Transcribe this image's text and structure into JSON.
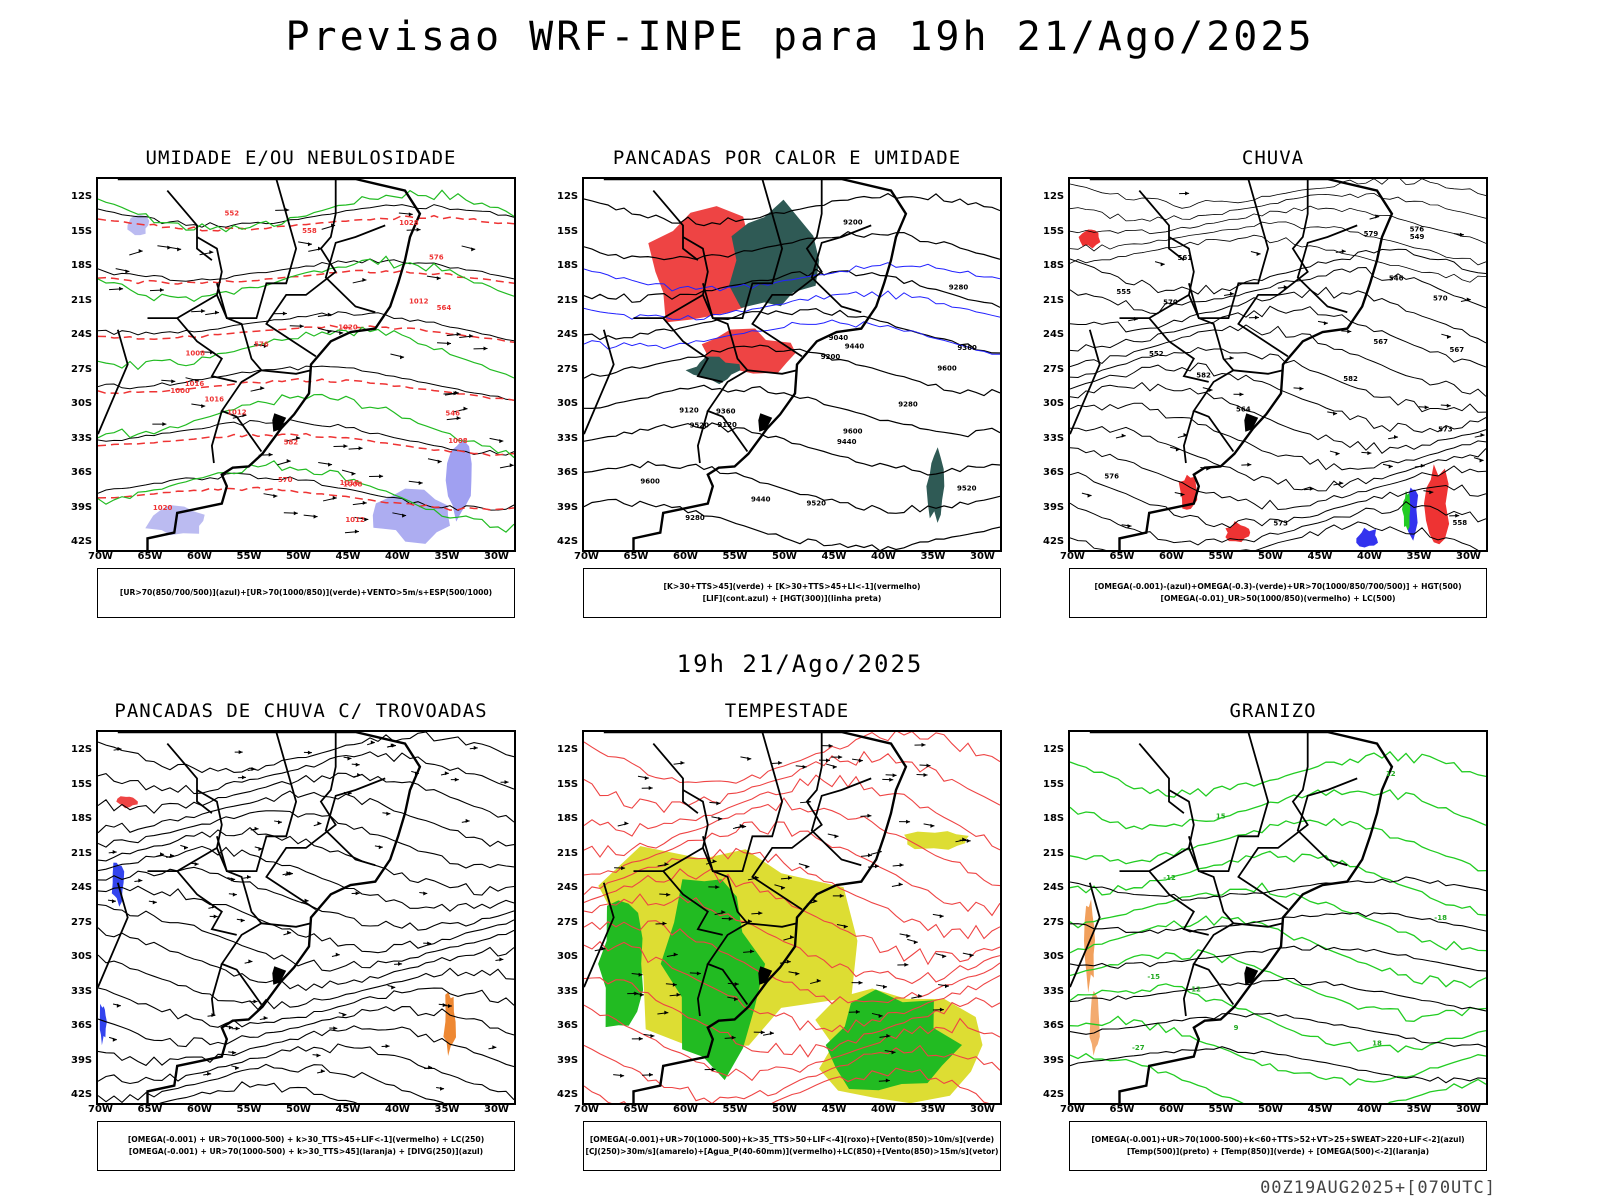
{
  "title": "Previsao WRF-INPE  para 19h 21/Ago/2025",
  "mid_date": "19h 21/Ago/2025",
  "run_stamp": "00Z19AUG2025+[070UTC]",
  "lat_labels": [
    "12S",
    "15S",
    "18S",
    "21S",
    "24S",
    "27S",
    "30S",
    "33S",
    "36S",
    "39S",
    "42S"
  ],
  "lon_labels": [
    "70W",
    "65W",
    "60W",
    "55W",
    "50W",
    "45W",
    "40W",
    "35W",
    "30W"
  ],
  "panels": [
    {
      "title": "UMIDADE E/OU NEBULOSIDADE",
      "legend": [
        "[UR>70(850/700/500)](azul)+[UR>70(1000/850)](verde)+VENTO>5m/s+ESP(500/1000)"
      ],
      "contour_labels": [
        "1008",
        "1012",
        "1016",
        "1000",
        "1008",
        "1016",
        "1020",
        "1020",
        "1016",
        "1012",
        "1008",
        "1028",
        "1012",
        "570",
        "576",
        "564",
        "558",
        "552",
        "546",
        "582",
        "576"
      ]
    },
    {
      "title": "PANCADAS POR CALOR E UMIDADE",
      "legend": [
        "[K>30+TTS>45](verde) + [K>30+TTS>45+LI<-1](vermelho)",
        "[LIF](cont.azul) + [HGT(300)](linha preta)"
      ],
      "contour_labels": [
        "9600",
        "9600",
        "9520",
        "9440",
        "9360",
        "9280",
        "9200",
        "9120",
        "9040",
        "9520",
        "9440",
        "9360",
        "9280",
        "9200",
        "9120",
        "9600",
        "9520",
        "9440",
        "9280"
      ]
    },
    {
      "title": "CHUVA",
      "legend": [
        "[OMEGA(-0.001)-(azul)+OMEGA(-0.3)-(verde)+UR>70(1000/850/700/500)] + HGT(500)",
        "[OMEGA(-0.01)_UR>50(1000/850)(vermelho) + LC(500)"
      ],
      "contour_labels": [
        "582",
        "576",
        "573",
        "570",
        "567",
        "564",
        "561",
        "558",
        "555",
        "552",
        "549",
        "546",
        "582",
        "579",
        "576",
        "573",
        "570",
        "567"
      ]
    },
    {
      "title": "PANCADAS DE CHUVA C/ TROVOADAS",
      "legend": [
        "[OMEGA(-0.001) + UR>70(1000-500) + k>30_TTS>45+LIF<-1](vermelho) + LC(250)",
        "[OMEGA(-0.001) + UR>70(1000-500) + k>30_TTS>45](laranja) + [DIVG(250)](azul)"
      ],
      "contour_labels": []
    },
    {
      "title": "TEMPESTADE",
      "legend": [
        "[OMEGA(-0.001)+UR>70(1000-500)+k>35_TTS>50+LIF<-4](roxo)+[Vento(850)>10m/s](verde)",
        "[CJ(250)>30m/s](amarelo)+[Agua_P(40-60mm)](vermelho)+LC(850)+[Vento(850)>15m/s](vetor)"
      ],
      "contour_labels": []
    },
    {
      "title": "GRANIZO",
      "legend": [
        "[OMEGA(-0.001)+UR>70(1000-500)+k<60+TTS>52+VT>25+SWEAT>220+LIF<-2](azul)",
        "[Temp(500)](preto) + [Temp(850)](verde) + [OMEGA(500)<-2](laranja)"
      ],
      "contour_labels": [
        "12",
        "12",
        "15",
        "18",
        "-12",
        "-15",
        "-18",
        "-27",
        "9"
      ]
    }
  ]
}
